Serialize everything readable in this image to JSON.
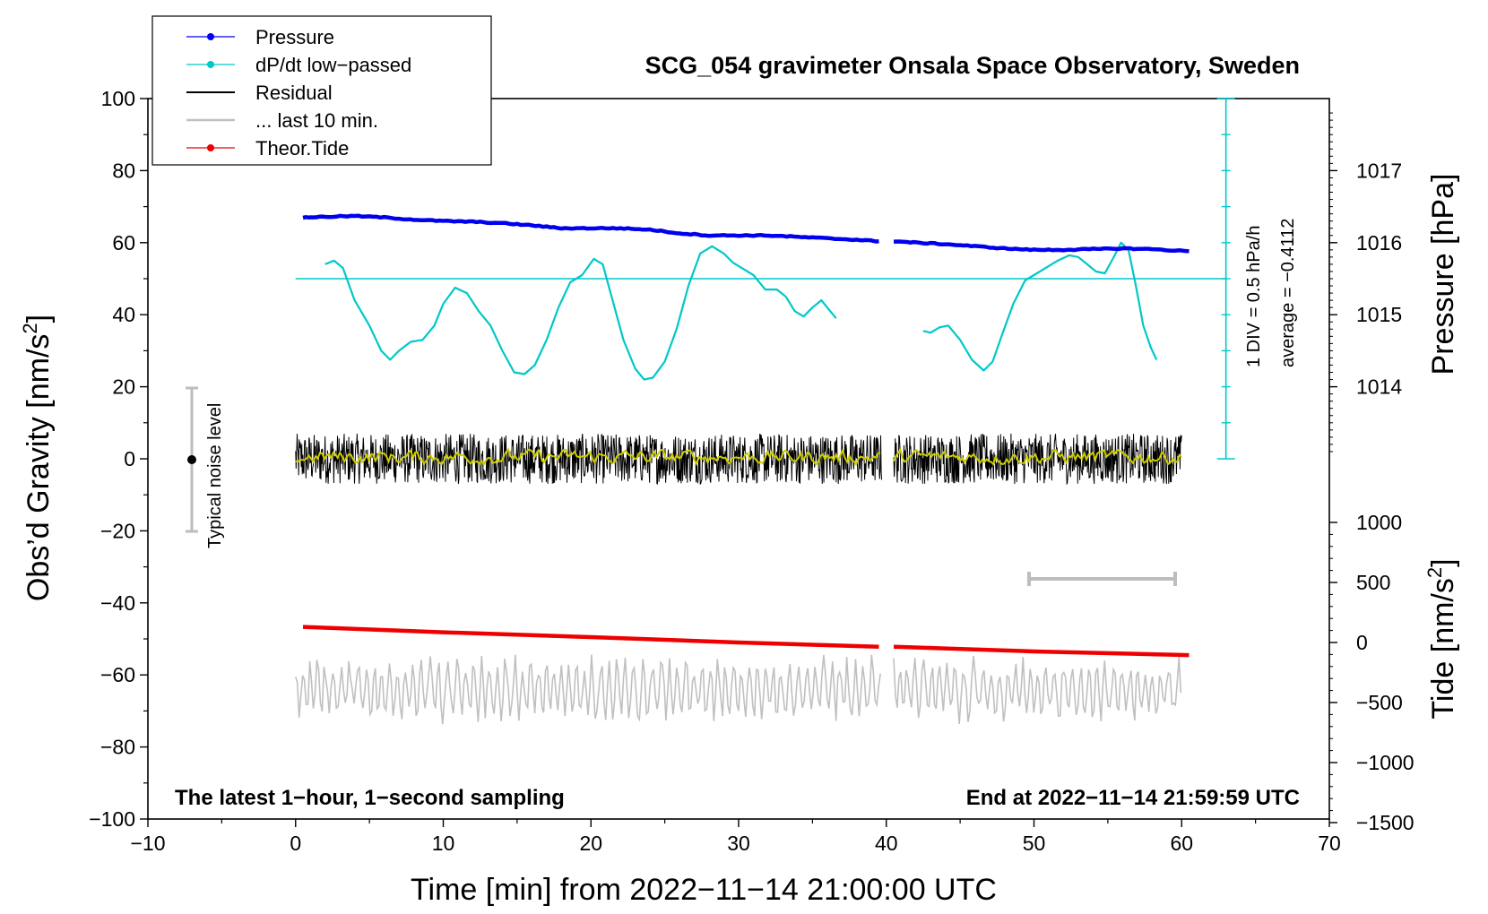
{
  "chart_data": {
    "type": "line",
    "title": "SCG_054 gravimeter Onsala Space Observatory, Sweden",
    "xlabel": "Time [min] from 2022−11−14 21:00:00 UTC",
    "ylabel_left_main": "Obs’d Gravity [nm/s",
    "ylabel_left_sup": "2",
    "ylabel_left_end": "]",
    "ylabel_pressure": "Pressure [hPa]",
    "ylabel_tide_main": "Tide [nm/s",
    "ylabel_tide_sup": "2",
    "ylabel_tide_end": "]",
    "xlim": [
      -10,
      70
    ],
    "ylim": [
      -100,
      100
    ],
    "x_ticks": [
      "−10",
      "0",
      "10",
      "20",
      "30",
      "40",
      "50",
      "60",
      "70"
    ],
    "y_ticks": [
      "−100",
      "−80",
      "−60",
      "−40",
      "−20",
      "0",
      "20",
      "40",
      "60",
      "80",
      "100"
    ],
    "pressure_ticks": [
      "1014",
      "1015",
      "1016",
      "1017"
    ],
    "tide_ticks": [
      "−1500",
      "−1000",
      "−500",
      "0",
      "500",
      "1000"
    ],
    "legend": [
      {
        "name": "Pressure",
        "color": "#0000ee",
        "marker": true
      },
      {
        "name": "dP/dt low−passed",
        "color": "#00c8c8",
        "marker": true
      },
      {
        "name": "Residual",
        "color": "#000000",
        "marker": false
      },
      {
        "name": "... last 10 min.",
        "color": "#c0c0c0",
        "marker": false
      },
      {
        "name": "Theor.Tide",
        "color": "#ee0000",
        "marker": true
      }
    ],
    "annotations": {
      "noise_label": "Typical noise level",
      "noise_range": [
        -20,
        20
      ],
      "dpdt_div": "1 DIV = 0.5 hPa/h",
      "dpdt_avg": "average = −0.4112",
      "bottom_left": "The latest 1−hour, 1−second sampling",
      "bottom_right": "End at 2022−11−14 21:59:59 UTC",
      "last10_bar": [
        50,
        60
      ]
    },
    "series": [
      {
        "name": "Pressure",
        "color": "#0000ee",
        "segments": [
          {
            "x": [
              0.5,
              2,
              4,
              6,
              8,
              10,
              12,
              14,
              16,
              18,
              20,
              22,
              24,
              26,
              28,
              30,
              32,
              34,
              36,
              38,
              39.5
            ],
            "y": [
              1016.35,
              1016.36,
              1016.37,
              1016.35,
              1016.32,
              1016.3,
              1016.29,
              1016.27,
              1016.24,
              1016.2,
              1016.2,
              1016.2,
              1016.18,
              1016.13,
              1016.1,
              1016.1,
              1016.1,
              1016.08,
              1016.06,
              1016.04,
              1016.02
            ]
          },
          {
            "x": [
              40.5,
              42,
              44,
              46,
              48,
              50,
              52,
              54,
              56,
              58,
              60.5
            ],
            "y": [
              1016.02,
              1016.0,
              1015.98,
              1015.95,
              1015.92,
              1015.9,
              1015.9,
              1015.91,
              1015.92,
              1015.91,
              1015.88
            ]
          }
        ]
      },
      {
        "name": "dP/dt low−passed",
        "color": "#00c8c8",
        "reference_level": 50,
        "segments": [
          {
            "x": [
              2,
              2.6,
              3.2,
              4,
              5,
              5.8,
              6.4,
              7,
              7.8,
              8.6,
              9.4,
              10,
              10.8,
              11.6,
              12.4,
              13.2,
              14,
              14.8,
              15.5,
              16.2,
              17,
              17.8,
              18.6,
              19.4,
              20.2,
              20.8,
              21.4,
              22.2,
              23,
              23.6,
              24.2,
              25,
              25.8,
              26.6,
              27.4,
              28.2,
              29,
              29.6,
              30.2,
              31,
              31.8,
              32.6,
              33.2,
              33.8,
              34.4,
              35,
              35.6,
              36.2,
              36.6
            ],
            "y": [
              54,
              55,
              53,
              44,
              37,
              30,
              27.5,
              30,
              32.5,
              33,
              37,
              43,
              47.5,
              46,
              41,
              37,
              30,
              24,
              23.5,
              26,
              33,
              42,
              49,
              51,
              55.5,
              54,
              45,
              33,
              25,
              22,
              22.5,
              27,
              36,
              48,
              57,
              59,
              57,
              54.5,
              53,
              51,
              47,
              47,
              45,
              41,
              39.5,
              42,
              44,
              41,
              39
            ]
          },
          {
            "x": [
              42.5,
              43,
              43.6,
              44.2,
              45,
              45.8,
              46.6,
              47.2,
              47.8,
              48.6,
              49.4,
              50,
              50.8,
              51.6,
              52.4,
              53,
              53.6,
              54.2,
              54.8,
              55.4,
              55.9,
              56.4,
              56.9,
              57.4,
              57.9,
              58.3
            ],
            "y": [
              35.5,
              35,
              36.5,
              37,
              33,
              27.5,
              24.5,
              27,
              34,
              43,
              49.5,
              51,
              53,
              55,
              56.5,
              56,
              54,
              52,
              51.5,
              56,
              60,
              58,
              48,
              37,
              31,
              27.5
            ]
          }
        ]
      },
      {
        "name": "Residual",
        "color": "#000000",
        "amplitude": 7,
        "segments": [
          [
            0,
            39.7
          ],
          [
            40.5,
            60
          ]
        ]
      },
      {
        "name": "Residual smoothed",
        "color": "#cccc00",
        "amplitude": 1.5,
        "segments": [
          [
            0,
            39.7
          ],
          [
            40.5,
            60
          ]
        ]
      },
      {
        "name": "Theor.Tide",
        "color": "#ee0000",
        "segments": [
          {
            "x": [
              0.5,
              10,
              20,
              30,
              39.5
            ],
            "y": [
              130,
              85,
              45,
              0,
              -35
            ]
          },
          {
            "x": [
              40.5,
              50,
              60.5
            ],
            "y": [
              -35,
              -75,
              -105
            ]
          }
        ]
      },
      {
        "name": "... last 10 min.",
        "color": "#c0c0c0",
        "base": -64,
        "amplitude": 7,
        "segments": [
          [
            0,
            39.7
          ],
          [
            40.5,
            60
          ]
        ]
      }
    ]
  }
}
